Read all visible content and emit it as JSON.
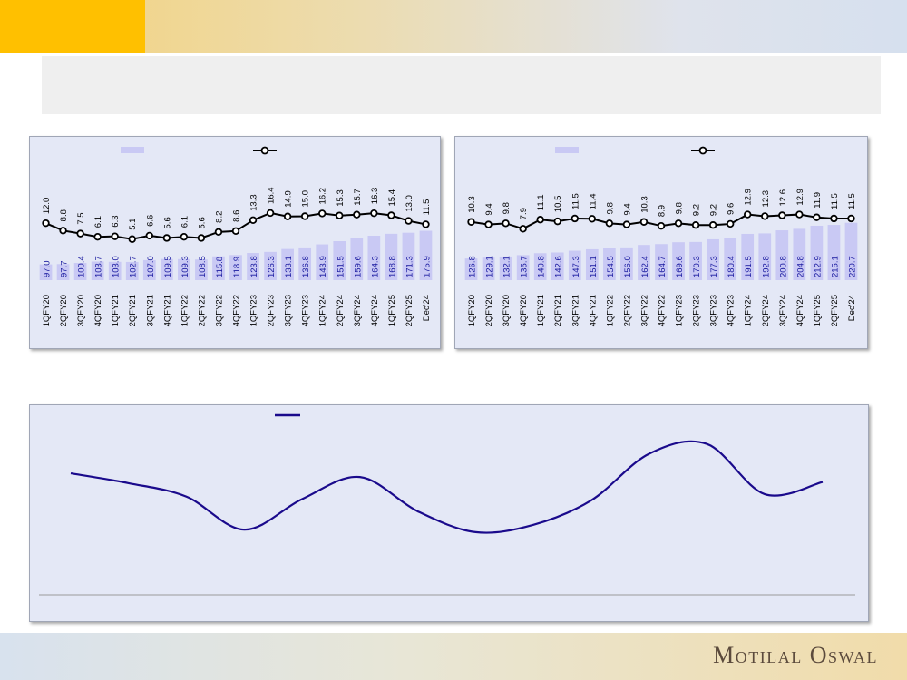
{
  "brand": {
    "logo_text": "Motilal Oswal"
  },
  "colors": {
    "bar": "#c9c9f4",
    "line": "#000000",
    "marker_fill": "#ffffff",
    "bar_label": "#1a1aa0",
    "curve": "#1a0a8c",
    "accent": "#ffc000"
  },
  "chart_data": [
    {
      "type": "bar",
      "categories": [
        "1QFY20",
        "2QFY20",
        "3QFY20",
        "4QFY20",
        "1QFY21",
        "2QFY21",
        "3QFY21",
        "4QFY21",
        "1QFY22",
        "2QFY22",
        "3QFY22",
        "4QFY22",
        "1QFY23",
        "2QFY23",
        "3QFY23",
        "4QFY23",
        "1QFY24",
        "2QFY24",
        "3QFY24",
        "4QFY24",
        "1QFY25",
        "2QFY25",
        "Dec'24"
      ],
      "series": [
        {
          "type": "bar",
          "values": [
            97.0,
            97.7,
            100.4,
            103.7,
            103.0,
            102.7,
            107.0,
            109.5,
            109.3,
            108.5,
            115.8,
            118.9,
            123.8,
            126.3,
            133.1,
            136.8,
            143.9,
            151.5,
            159.6,
            164.3,
            168.8,
            171.3,
            175.9
          ]
        },
        {
          "type": "line",
          "values": [
            12.0,
            8.8,
            7.5,
            6.1,
            6.3,
            5.1,
            6.6,
            5.6,
            6.1,
            5.6,
            8.2,
            8.6,
            13.3,
            16.4,
            14.9,
            15.0,
            16.2,
            15.3,
            15.7,
            16.3,
            15.4,
            13.0,
            11.5
          ]
        }
      ],
      "bar_labels": [
        "97.0",
        "97.7",
        "100.4",
        "103.7",
        "103.0",
        "102.7",
        "107.0",
        "109.5",
        "109.3",
        "108.5",
        "115.8",
        "118.9",
        "123.8",
        "126.3",
        "133.1",
        "136.8",
        "143.9",
        "151.5",
        "159.6",
        "164.3",
        "168.8",
        "171.3",
        "175.9"
      ],
      "line_labels": [
        "12.0",
        "8.8",
        "7.5",
        "6.1",
        "6.3",
        "5.1",
        "6.6",
        "5.6",
        "6.1",
        "5.6",
        "8.2",
        "8.6",
        "13.3",
        "16.4",
        "14.9",
        "15.0",
        "16.2",
        "15.3",
        "15.7",
        "16.3",
        "15.4",
        "13.0",
        "11.5"
      ],
      "legend": "top",
      "grid": false
    },
    {
      "type": "bar",
      "categories": [
        "1QFY20",
        "2QFY20",
        "3QFY20",
        "4QFY20",
        "1QFY21",
        "2QFY21",
        "3QFY21",
        "4QFY21",
        "1QFY22",
        "2QFY22",
        "3QFY22",
        "4QFY22",
        "1QFY23",
        "2QFY23",
        "3QFY23",
        "4QFY23",
        "1QFY24",
        "2QFY24",
        "3QFY24",
        "4QFY24",
        "1QFY25",
        "2QFY25",
        "Dec'24"
      ],
      "series": [
        {
          "type": "bar",
          "values": [
            126.8,
            129.1,
            132.1,
            135.7,
            140.8,
            142.6,
            147.3,
            151.1,
            154.5,
            156.0,
            162.4,
            164.7,
            169.6,
            170.3,
            177.3,
            180.4,
            191.5,
            192.8,
            200.8,
            204.8,
            212.9,
            215.1,
            220.7
          ]
        },
        {
          "type": "line",
          "values": [
            10.3,
            9.4,
            9.8,
            7.9,
            11.1,
            10.5,
            11.5,
            11.4,
            9.8,
            9.4,
            10.3,
            8.9,
            9.8,
            9.2,
            9.2,
            9.6,
            12.9,
            12.3,
            12.6,
            12.9,
            11.9,
            11.5,
            11.5
          ]
        }
      ],
      "bar_labels": [
        "126.8",
        "129.1",
        "132.1",
        "135.7",
        "140.8",
        "142.6",
        "147.3",
        "151.1",
        "154.5",
        "156.0",
        "162.4",
        "164.7",
        "169.6",
        "170.3",
        "177.3",
        "180.4",
        "191.5",
        "192.8",
        "200.8",
        "204.8",
        "212.9",
        "215.1",
        "220.7"
      ],
      "line_labels": [
        "10.3",
        "9.4",
        "9.8",
        "7.9",
        "11.1",
        "10.5",
        "11.5",
        "11.4",
        "9.8",
        "9.4",
        "10.3",
        "8.9",
        "9.8",
        "9.2",
        "9.2",
        "9.6",
        "12.9",
        "12.3",
        "12.6",
        "12.9",
        "11.9",
        "11.5",
        "11.5"
      ],
      "legend": "top",
      "grid": false
    },
    {
      "type": "line",
      "series": [
        {
          "values": [
            0.74,
            0.66,
            0.55,
            0.28,
            0.53,
            0.71,
            0.43,
            0.26,
            0.32,
            0.52,
            0.9,
            0.98,
            0.57,
            0.67
          ]
        }
      ],
      "legend": "top",
      "grid": false
    }
  ]
}
